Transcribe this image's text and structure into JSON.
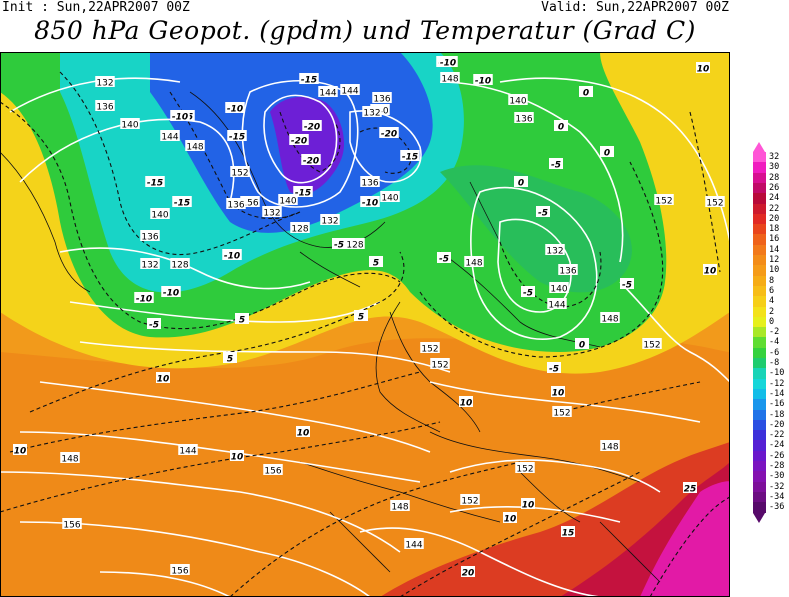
{
  "header": {
    "init": "Init : Sun,22APR2007 00Z",
    "valid": "Valid: Sun,22APR2007 00Z",
    "title": "850 hPa Geopot. (gpdm) und Temperatur (Grad C)"
  },
  "colors": {
    "warm_orange": "#f7a11a",
    "yellow": "#f5e619",
    "green": "#27d23c",
    "cyan": "#17d4c8",
    "blue": "#1d66e8",
    "violet": "#6b1dd8",
    "red": "#dd2a36",
    "magenta": "#ee1ab0",
    "contour_white": "#ffffff"
  },
  "colorbar": {
    "labels": [
      "32",
      "30",
      "28",
      "26",
      "24",
      "22",
      "20",
      "18",
      "16",
      "14",
      "12",
      "10",
      "8",
      "6",
      "4",
      "2",
      "0",
      "-2",
      "-4",
      "-6",
      "-8",
      "-10",
      "-12",
      "-14",
      "-16",
      "-18",
      "-20",
      "-22",
      "-24",
      "-26",
      "-28",
      "-30",
      "-32",
      "-34",
      "-36"
    ],
    "colors": [
      "#ff55d6",
      "#f01cbf",
      "#d70f90",
      "#c00a67",
      "#b80a3a",
      "#cd1a2e",
      "#e12a24",
      "#e9451c",
      "#ef621a",
      "#f2791a",
      "#f38c18",
      "#f59b18",
      "#f6ac16",
      "#f7bd17",
      "#f6cf18",
      "#f3e21a",
      "#e6f01c",
      "#a9e827",
      "#5fdd32",
      "#35d23e",
      "#1fcc6e",
      "#19d4b7",
      "#16d6d9",
      "#12bde8",
      "#1996ec",
      "#2073e8",
      "#2a4fe2",
      "#3c30da",
      "#5620d4",
      "#6a17cc",
      "#7a14c0",
      "#8411b0",
      "#7d0f9a",
      "#6c0d82",
      "#570a6a"
    ],
    "up_arrow_color": "#ff55d6",
    "down_arrow_color": "#570a6a"
  },
  "geopotential_labels": [
    {
      "text": "132"
    },
    {
      "text": "136"
    },
    {
      "text": "140"
    },
    {
      "text": "144"
    },
    {
      "text": "148"
    },
    {
      "text": "152"
    },
    {
      "text": "156"
    },
    {
      "text": "128"
    },
    {
      "text": "132"
    },
    {
      "text": "136"
    },
    {
      "text": "140"
    },
    {
      "text": "144"
    },
    {
      "text": "148"
    },
    {
      "text": "152"
    },
    {
      "text": "136"
    },
    {
      "text": "132"
    },
    {
      "text": "140"
    },
    {
      "text": "136"
    },
    {
      "text": "144"
    },
    {
      "text": "140"
    },
    {
      "text": "132"
    },
    {
      "text": "128"
    },
    {
      "text": "128"
    },
    {
      "text": "132"
    },
    {
      "text": "136"
    },
    {
      "text": "140"
    },
    {
      "text": "144"
    },
    {
      "text": "148"
    },
    {
      "text": "152"
    },
    {
      "text": "152"
    },
    {
      "text": "152"
    },
    {
      "text": "148"
    },
    {
      "text": "152"
    },
    {
      "text": "148"
    },
    {
      "text": "144"
    },
    {
      "text": "156"
    },
    {
      "text": "156"
    },
    {
      "text": "156"
    },
    {
      "text": "152"
    },
    {
      "text": "148"
    },
    {
      "text": "140"
    },
    {
      "text": "144"
    },
    {
      "text": "136"
    },
    {
      "text": "132"
    },
    {
      "text": "136"
    },
    {
      "text": "140"
    },
    {
      "text": "148"
    },
    {
      "text": "152"
    },
    {
      "text": "152"
    }
  ],
  "temperature_labels": [
    {
      "text": "-15"
    },
    {
      "text": "-20"
    },
    {
      "text": "-20"
    },
    {
      "text": "-20"
    },
    {
      "text": "-15"
    },
    {
      "text": "-10"
    },
    {
      "text": "-10"
    },
    {
      "text": "-15"
    },
    {
      "text": "-15"
    },
    {
      "text": "-10"
    },
    {
      "text": "-10"
    },
    {
      "text": "-15"
    },
    {
      "text": "-15"
    },
    {
      "text": "-10"
    },
    {
      "text": "-10"
    },
    {
      "text": "-10"
    },
    {
      "text": "-5"
    },
    {
      "text": "-5"
    },
    {
      "text": "-5"
    },
    {
      "text": "-5"
    },
    {
      "text": "-5"
    },
    {
      "text": "-10"
    },
    {
      "text": "-20"
    },
    {
      "text": "-15"
    },
    {
      "text": "-10"
    },
    {
      "text": "-5"
    },
    {
      "text": "-5"
    },
    {
      "text": "0"
    },
    {
      "text": "0"
    },
    {
      "text": "0"
    },
    {
      "text": "0"
    },
    {
      "text": "5"
    },
    {
      "text": "5"
    },
    {
      "text": "5"
    },
    {
      "text": "5"
    },
    {
      "text": "10"
    },
    {
      "text": "10"
    },
    {
      "text": "10"
    },
    {
      "text": "10"
    },
    {
      "text": "10"
    },
    {
      "text": "10"
    },
    {
      "text": "10"
    },
    {
      "text": "10"
    },
    {
      "text": "15"
    },
    {
      "text": "20"
    },
    {
      "text": "25"
    },
    {
      "text": "10"
    },
    {
      "text": "10"
    },
    {
      "text": "-5"
    },
    {
      "text": "0"
    }
  ]
}
